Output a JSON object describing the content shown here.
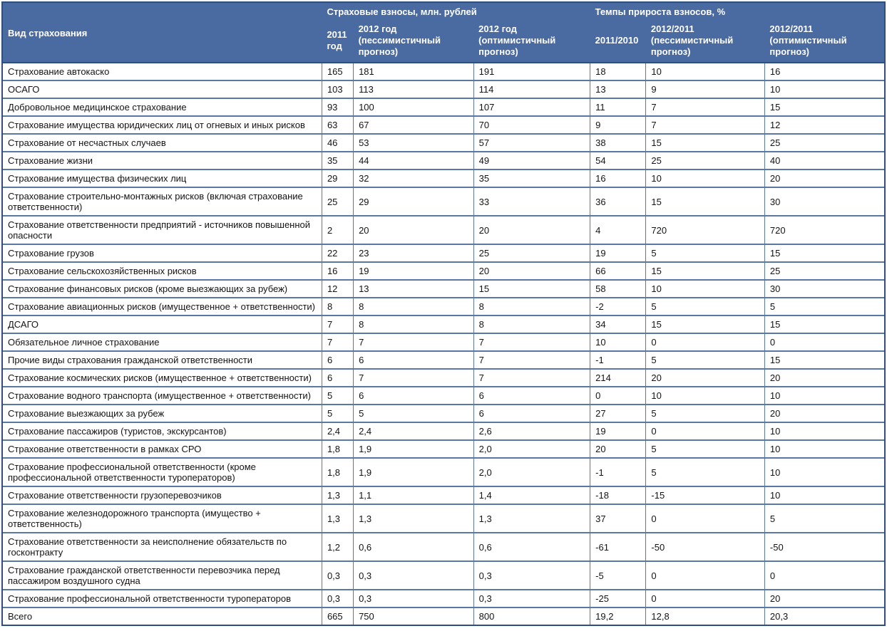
{
  "colors": {
    "header_bg": "#4a6aa2",
    "header_text": "#ffffff",
    "outer_border": "#2f4f7d",
    "cell_border": "#5a78a4",
    "body_text": "#141414",
    "row_bg": "#ffffff"
  },
  "chart_data": {
    "type": "table",
    "title": "",
    "column_groups": [
      "Страховые взносы, млн. рублей",
      "Темпы прироста взносов, %"
    ],
    "columns": [
      "Вид страхования",
      "2011 год",
      "2012 год (пессимистичный прогноз)",
      "2012 год (оптимистичный прогноз)",
      "2011/2010",
      "2012/2011 (пессимистичный прогноз)",
      "2012/2011 (оптимистичный прогноз)"
    ],
    "rows": [
      [
        "Страхование автокаско",
        "165",
        "181",
        "191",
        "18",
        "10",
        "16"
      ],
      [
        "ОСАГО",
        "103",
        "113",
        "114",
        "13",
        "9",
        "10"
      ],
      [
        "Добровольное медицинское страхование",
        "93",
        "100",
        "107",
        "11",
        "7",
        "15"
      ],
      [
        "Страхование имущества юридических лиц от огневых и иных рисков",
        "63",
        "67",
        "70",
        "9",
        "7",
        "12"
      ],
      [
        "Страхование от несчастных случаев",
        "46",
        "53",
        "57",
        "38",
        "15",
        "25"
      ],
      [
        "Страхование жизни",
        "35",
        "44",
        "49",
        "54",
        "25",
        "40"
      ],
      [
        "Страхование имущества физических лиц",
        "29",
        "32",
        "35",
        "16",
        "10",
        "20"
      ],
      [
        "Страхование строительно-монтажных рисков (включая страхование ответственности)",
        "25",
        "29",
        "33",
        "36",
        "15",
        "30"
      ],
      [
        "Страхование ответственности предприятий - источников повышенной опасности",
        "2",
        "20",
        "20",
        "4",
        "720",
        "720"
      ],
      [
        "Страхование грузов",
        "22",
        "23",
        "25",
        "19",
        "5",
        "15"
      ],
      [
        "Страхование сельскохозяйственных рисков",
        "16",
        "19",
        "20",
        "66",
        "15",
        "25"
      ],
      [
        "Страхование финансовых рисков (кроме выезжающих за рубеж)",
        "12",
        "13",
        "15",
        "58",
        "10",
        "30"
      ],
      [
        "Страхование авиационных рисков (имущественное + ответственности)",
        "8",
        "8",
        "8",
        "-2",
        "5",
        "5"
      ],
      [
        "ДСАГО",
        "7",
        "8",
        "8",
        "34",
        "15",
        "15"
      ],
      [
        "Обязательное личное страхование",
        "7",
        "7",
        "7",
        "10",
        "0",
        "0"
      ],
      [
        "Прочие виды страхования гражданской ответственности",
        "6",
        "6",
        "7",
        "-1",
        "5",
        "15"
      ],
      [
        "Страхование космических рисков (имущественное + ответственности)",
        "6",
        "7",
        "7",
        "214",
        "20",
        "20"
      ],
      [
        "Страхование водного транспорта (имущественное + ответственности)",
        "5",
        "6",
        "6",
        "0",
        "10",
        "10"
      ],
      [
        "Страхование выезжающих за рубеж",
        "5",
        "5",
        "6",
        "27",
        "5",
        "20"
      ],
      [
        "Страхование пассажиров (туристов, экскурсантов)",
        "2,4",
        "2,4",
        "2,6",
        "19",
        "0",
        "10"
      ],
      [
        "Страхование ответственности в рамках СРО",
        "1,8",
        "1,9",
        "2,0",
        "20",
        "5",
        "10"
      ],
      [
        "Страхование профессиональной ответственности (кроме профессиональной ответственности туроператоров)",
        "1,8",
        "1,9",
        "2,0",
        "-1",
        "5",
        "10"
      ],
      [
        "Страхование ответственности грузоперевозчиков",
        "1,3",
        "1,1",
        "1,4",
        "-18",
        "-15",
        "10"
      ],
      [
        "Страхование железнодорожного транспорта (имущество + ответственность)",
        "1,3",
        "1,3",
        "1,3",
        "37",
        "0",
        "5"
      ],
      [
        "Страхование ответственности за неисполнение обязательств по госконтракту",
        "1,2",
        "0,6",
        "0,6",
        "-61",
        "-50",
        "-50"
      ],
      [
        "Страхование гражданской ответственности перевозчика перед пассажиром воздушного судна",
        "0,3",
        "0,3",
        "0,3",
        "-5",
        "0",
        "0"
      ],
      [
        "Страхование профессиональной ответственности туроператоров",
        "0,3",
        "0,3",
        "0,3",
        "-25",
        "0",
        "20"
      ]
    ],
    "total_row": [
      "Всего",
      "665",
      "750",
      "800",
      "19,2",
      "12,8",
      "20,3"
    ]
  }
}
